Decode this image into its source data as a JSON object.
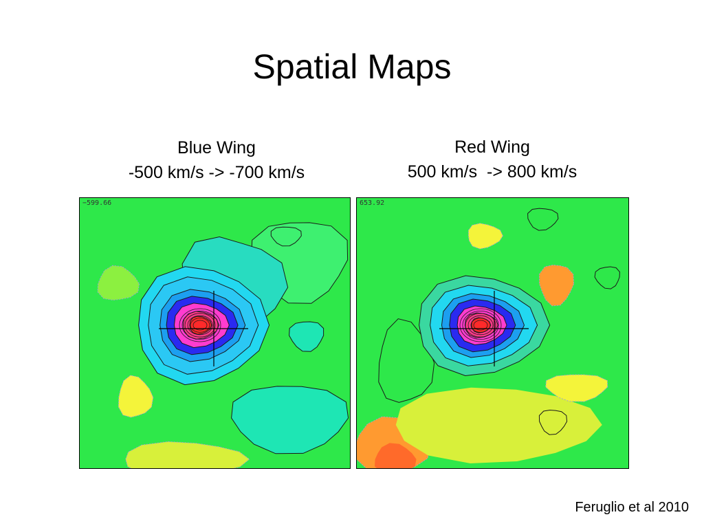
{
  "slide": {
    "title": "Spatial Maps",
    "credit": "Feruglio et al 2010"
  },
  "panels": [
    {
      "caption_line1": "Blue Wing",
      "caption_line2": "-500 km/s -> -700 km/s",
      "corner_label": "−599.66",
      "palette": "blue"
    },
    {
      "caption_line1": "Red Wing",
      "caption_line2": "500 km/s  -> 800 km/s",
      "corner_label": "653.92",
      "palette": "red"
    }
  ],
  "colors": {
    "background": "#2ee84a",
    "peak": "#ff2a2a",
    "magenta": "#ff3ccf",
    "blue": "#2a2af0",
    "cyan": "#22d8f0",
    "teal": "#1ee6b4",
    "yellow": "#f4f43a",
    "orange": "#ff9a30",
    "contour": "#1a1a1a",
    "negative_contour": "#9aa0d8"
  }
}
